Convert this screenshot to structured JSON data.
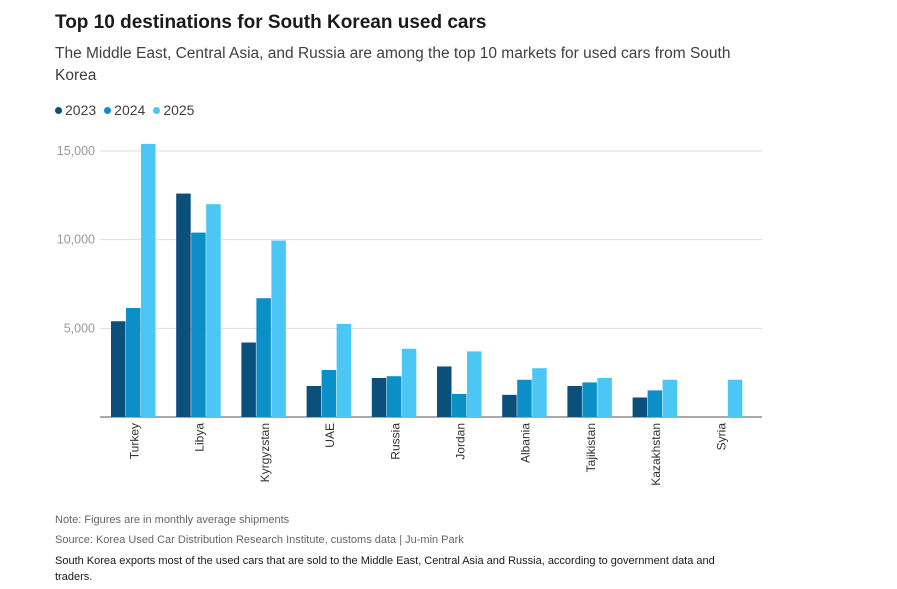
{
  "title": "Top 10 destinations for South Korean used cars",
  "subtitle": "The Middle East, Central Asia, and Russia are among the top 10 markets for used cars from South Korea",
  "note": "Note: Figures are in monthly average shipments",
  "source": "Source: Korea Used Car Distribution Research Institute, customs data | Ju-min Park",
  "caption": "South Korea exports most of the used cars that are sold to the Middle East, Central Asia and Russia, according to government data and traders.",
  "colors": {
    "2023": "#0b4f7c",
    "2024": "#0a8fc6",
    "2025": "#4cc6f5",
    "grid": "#dddddd",
    "axis": "#555555",
    "tick": "#999999"
  },
  "chart_data": {
    "type": "bar",
    "categories": [
      "Turkey",
      "Libya",
      "Kyrgyzstan",
      "UAE",
      "Russia",
      "Jordan",
      "Albania",
      "Tajikistan",
      "Kazakhstan",
      "Syria"
    ],
    "series": [
      {
        "name": "2023",
        "values": [
          5400,
          12600,
          4200,
          1750,
          2200,
          2850,
          1250,
          1750,
          1100,
          0
        ]
      },
      {
        "name": "2024",
        "values": [
          6150,
          10400,
          6700,
          2650,
          2300,
          1300,
          2100,
          1950,
          1500,
          0
        ]
      },
      {
        "name": "2025",
        "values": [
          15400,
          12000,
          9950,
          5250,
          3850,
          3700,
          2750,
          2200,
          2100,
          2100
        ]
      }
    ],
    "yticks": [
      "5,000",
      "10,000",
      "15,000"
    ],
    "ylim": [
      0,
      16000
    ],
    "legend_position": "top-left",
    "grid": true
  }
}
